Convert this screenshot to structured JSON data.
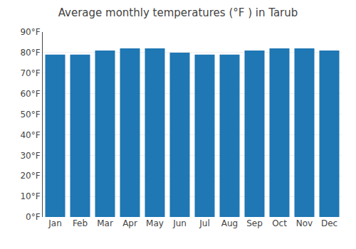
{
  "chart_data": {
    "type": "bar",
    "title": "Average monthly temperatures (°F ) in Tarub",
    "categories": [
      "Jan",
      "Feb",
      "Mar",
      "Apr",
      "May",
      "Jun",
      "Jul",
      "Aug",
      "Sep",
      "Oct",
      "Nov",
      "Dec"
    ],
    "values": [
      79,
      79,
      81,
      82,
      82,
      80,
      79,
      79,
      81,
      82,
      82,
      81
    ],
    "ylim": [
      0,
      90
    ],
    "yticks": [
      {
        "value": 0,
        "label": "0°F"
      },
      {
        "value": 10,
        "label": "10°F"
      },
      {
        "value": 20,
        "label": "20°F"
      },
      {
        "value": 30,
        "label": "30°F"
      },
      {
        "value": 40,
        "label": "40°F"
      },
      {
        "value": 50,
        "label": "50°F"
      },
      {
        "value": 60,
        "label": "60°F"
      },
      {
        "value": 70,
        "label": "70°F"
      },
      {
        "value": 80,
        "label": "80°F"
      },
      {
        "value": 90,
        "label": "90°F"
      }
    ],
    "grid": true
  }
}
